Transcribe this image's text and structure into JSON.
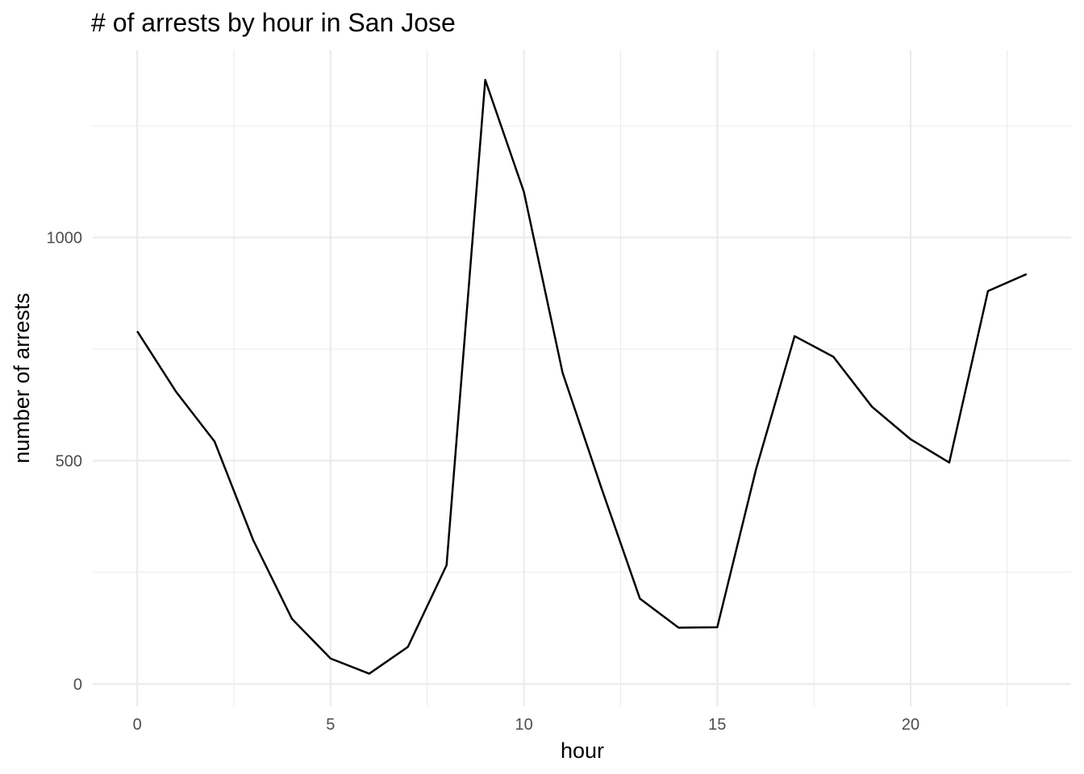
{
  "chart_data": {
    "type": "line",
    "title": "# of arrests by hour in San Jose",
    "xlabel": "hour",
    "ylabel": "number of arrests",
    "x": [
      0,
      1,
      2,
      3,
      4,
      5,
      6,
      7,
      8,
      9,
      10,
      11,
      12,
      13,
      14,
      15,
      16,
      17,
      18,
      19,
      20,
      21,
      22,
      23
    ],
    "series": [
      {
        "values": [
          790,
          655,
          543,
          322,
          146,
          57,
          23,
          83,
          266,
          1353,
          1102,
          697,
          440,
          191,
          126,
          127,
          480,
          779,
          733,
          621,
          548,
          496,
          880,
          918
        ],
        "color": "#000000"
      }
    ],
    "xlim": [
      -1.15,
      24.15
    ],
    "ylim": [
      -50,
      1420
    ],
    "x_major_ticks": [
      0,
      5,
      10,
      15,
      20
    ],
    "x_minor_ticks": [
      2.5,
      7.5,
      12.5,
      17.5,
      22.5
    ],
    "y_major_ticks": [
      0,
      500,
      1000
    ],
    "y_minor_ticks": [
      250,
      750,
      1250
    ],
    "x_tick_labels": [
      "0",
      "5",
      "10",
      "15",
      "20"
    ],
    "y_tick_labels": [
      "0",
      "500",
      "1000"
    ],
    "grid": true,
    "legend": "none",
    "colors": {
      "background": "#ffffff",
      "grid": "#ebebeb",
      "tick_text": "#4d4d4d",
      "text": "#000000"
    }
  }
}
